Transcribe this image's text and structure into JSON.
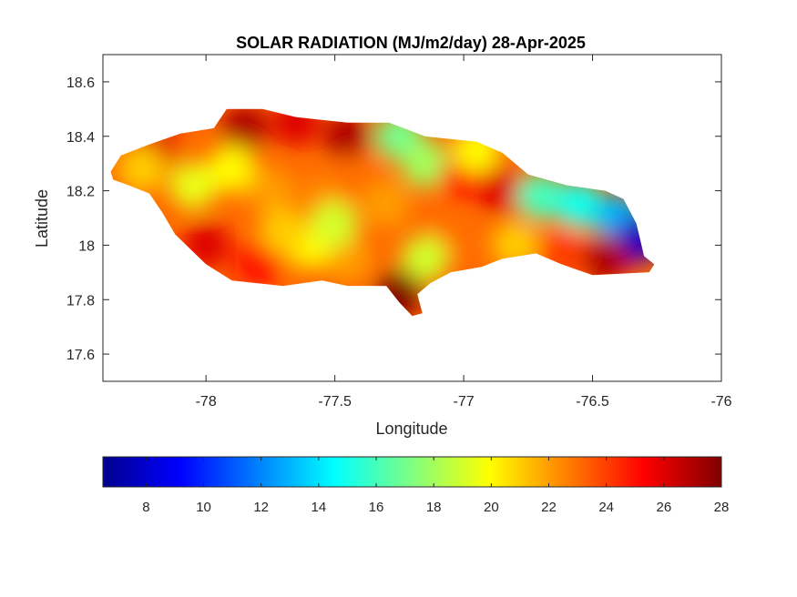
{
  "chart_data": {
    "type": "heatmap",
    "title": "SOLAR RADIATION (MJ/m2/day) 28-Apr-2025",
    "xlabel": "Longitude",
    "ylabel": "Latitude",
    "xlim": [
      -78.4,
      -76
    ],
    "ylim": [
      17.5,
      18.7
    ],
    "xticks": [
      -78,
      -77.5,
      -77,
      -76.5,
      -76
    ],
    "yticks": [
      17.6,
      17.8,
      18,
      18.2,
      18.4,
      18.6
    ],
    "grid": false,
    "colormap": "jet",
    "colorbar": {
      "orientation": "horizontal",
      "position": "bottom",
      "range": [
        6.5,
        28
      ],
      "ticks": [
        8,
        10,
        12,
        14,
        16,
        18,
        20,
        22,
        24,
        26,
        28
      ]
    },
    "region_outline": [
      [
        -78.37,
        18.27
      ],
      [
        -78.33,
        18.33
      ],
      [
        -78.22,
        18.37
      ],
      [
        -78.1,
        18.41
      ],
      [
        -77.97,
        18.43
      ],
      [
        -77.92,
        18.5
      ],
      [
        -77.78,
        18.5
      ],
      [
        -77.65,
        18.47
      ],
      [
        -77.45,
        18.45
      ],
      [
        -77.29,
        18.45
      ],
      [
        -77.15,
        18.4
      ],
      [
        -76.95,
        18.38
      ],
      [
        -76.85,
        18.34
      ],
      [
        -76.75,
        18.26
      ],
      [
        -76.6,
        18.22
      ],
      [
        -76.45,
        18.2
      ],
      [
        -76.38,
        18.17
      ],
      [
        -76.33,
        18.08
      ],
      [
        -76.3,
        17.96
      ],
      [
        -76.26,
        17.93
      ],
      [
        -76.28,
        17.9
      ],
      [
        -76.5,
        17.89
      ],
      [
        -76.62,
        17.93
      ],
      [
        -76.72,
        17.97
      ],
      [
        -76.85,
        17.95
      ],
      [
        -76.93,
        17.92
      ],
      [
        -77.05,
        17.9
      ],
      [
        -77.13,
        17.86
      ],
      [
        -77.18,
        17.82
      ],
      [
        -77.16,
        17.75
      ],
      [
        -77.2,
        17.74
      ],
      [
        -77.25,
        17.79
      ],
      [
        -77.3,
        17.85
      ],
      [
        -77.45,
        17.85
      ],
      [
        -77.55,
        17.87
      ],
      [
        -77.7,
        17.85
      ],
      [
        -77.9,
        17.87
      ],
      [
        -78.0,
        17.93
      ],
      [
        -78.12,
        18.04
      ],
      [
        -78.17,
        18.12
      ],
      [
        -78.22,
        18.19
      ],
      [
        -78.3,
        18.22
      ],
      [
        -78.36,
        18.24
      ]
    ],
    "field_samples": [
      {
        "lon": -77.85,
        "lat": 18.43,
        "value": 27
      },
      {
        "lon": -77.45,
        "lat": 18.4,
        "value": 27
      },
      {
        "lon": -77.65,
        "lat": 18.45,
        "value": 26
      },
      {
        "lon": -78.2,
        "lat": 18.35,
        "value": 26
      },
      {
        "lon": -78.25,
        "lat": 18.28,
        "value": 21
      },
      {
        "lon": -78.05,
        "lat": 18.22,
        "value": 19.5
      },
      {
        "lon": -77.9,
        "lat": 18.28,
        "value": 20
      },
      {
        "lon": -77.75,
        "lat": 18.2,
        "value": 22
      },
      {
        "lon": -77.55,
        "lat": 18.18,
        "value": 22.5
      },
      {
        "lon": -77.4,
        "lat": 18.25,
        "value": 23
      },
      {
        "lon": -77.3,
        "lat": 18.15,
        "value": 22
      },
      {
        "lon": -77.25,
        "lat": 18.4,
        "value": 17
      },
      {
        "lon": -77.15,
        "lat": 18.3,
        "value": 18
      },
      {
        "lon": -77.0,
        "lat": 18.25,
        "value": 25
      },
      {
        "lon": -76.85,
        "lat": 18.2,
        "value": 26
      },
      {
        "lon": -76.95,
        "lat": 18.35,
        "value": 20
      },
      {
        "lon": -76.7,
        "lat": 18.18,
        "value": 16
      },
      {
        "lon": -76.55,
        "lat": 18.15,
        "value": 15
      },
      {
        "lon": -76.4,
        "lat": 18.1,
        "value": 13
      },
      {
        "lon": -76.33,
        "lat": 18.02,
        "value": 8
      },
      {
        "lon": -76.45,
        "lat": 17.95,
        "value": 27
      },
      {
        "lon": -76.62,
        "lat": 17.97,
        "value": 24
      },
      {
        "lon": -76.8,
        "lat": 18.0,
        "value": 21
      },
      {
        "lon": -77.05,
        "lat": 18.05,
        "value": 23
      },
      {
        "lon": -77.15,
        "lat": 17.95,
        "value": 19
      },
      {
        "lon": -77.25,
        "lat": 17.82,
        "value": 28
      },
      {
        "lon": -77.45,
        "lat": 17.95,
        "value": 22
      },
      {
        "lon": -77.6,
        "lat": 18.0,
        "value": 20
      },
      {
        "lon": -77.8,
        "lat": 17.93,
        "value": 25
      },
      {
        "lon": -78.0,
        "lat": 18.0,
        "value": 26
      },
      {
        "lon": -77.7,
        "lat": 18.05,
        "value": 21
      },
      {
        "lon": -77.5,
        "lat": 18.08,
        "value": 19
      }
    ]
  }
}
